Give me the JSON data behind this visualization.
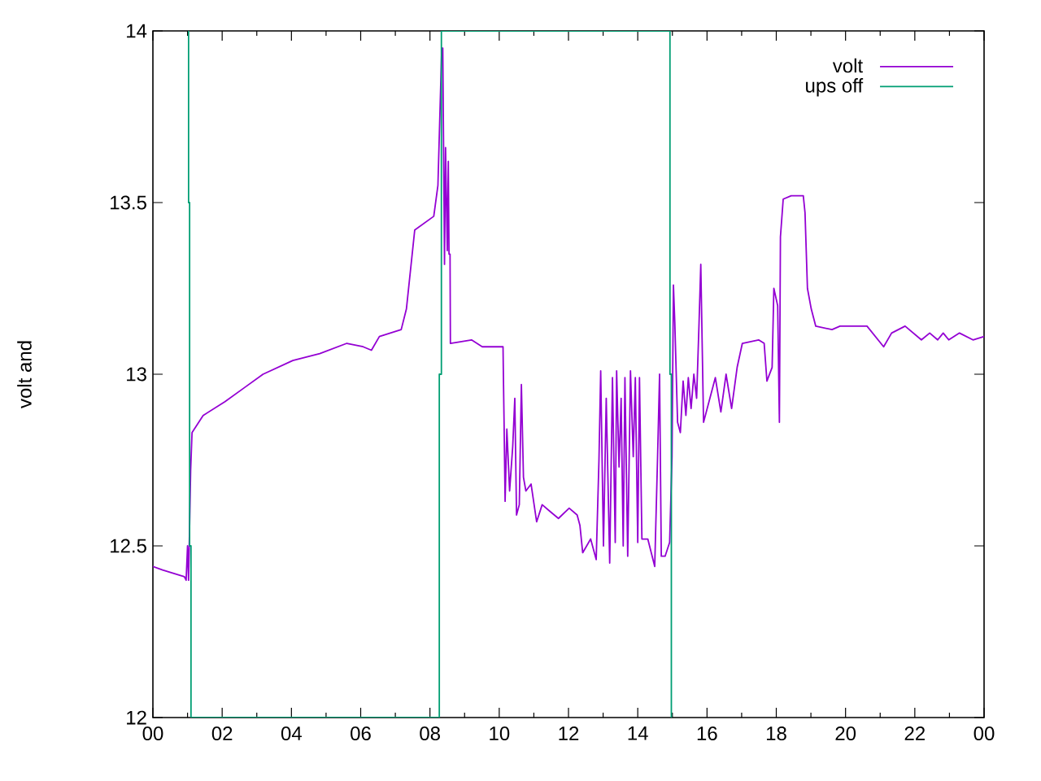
{
  "chart_data": {
    "type": "line",
    "ylabel": "volt and",
    "legend": "top right",
    "marker": "none",
    "line_style": "solid",
    "xlim": [
      0,
      24
    ],
    "ylim": [
      12,
      14
    ],
    "xticks": [
      {
        "value": 0,
        "label": "00"
      },
      {
        "value": 2,
        "label": "02"
      },
      {
        "value": 4,
        "label": "04"
      },
      {
        "value": 6,
        "label": "06"
      },
      {
        "value": 8,
        "label": "08"
      },
      {
        "value": 10,
        "label": "10"
      },
      {
        "value": 12,
        "label": "12"
      },
      {
        "value": 14,
        "label": "14"
      },
      {
        "value": 16,
        "label": "16"
      },
      {
        "value": 18,
        "label": "18"
      },
      {
        "value": 20,
        "label": "20"
      },
      {
        "value": 22,
        "label": "22"
      },
      {
        "value": 24,
        "label": "00"
      }
    ],
    "yticks": [
      12,
      12.5,
      13,
      13.5,
      14
    ],
    "series": [
      {
        "name": "volt",
        "color": "#9400d3",
        "x": [
          0,
          0.28,
          0.91,
          0.96,
          1.0,
          1.03,
          1.09,
          1.13,
          1.45,
          2.08,
          2.63,
          3.18,
          4.04,
          4.82,
          5.6,
          6.07,
          6.31,
          6.54,
          7.17,
          7.32,
          7.56,
          8.11,
          8.23,
          8.34,
          8.37,
          8.42,
          8.45,
          8.5,
          8.53,
          8.55,
          8.58,
          8.59,
          9.2,
          9.51,
          10.11,
          10.12,
          10.14,
          10.17,
          10.22,
          10.3,
          10.39,
          10.45,
          10.5,
          10.58,
          10.64,
          10.7,
          10.77,
          10.92,
          11.08,
          11.24,
          11.47,
          11.71,
          12.02,
          12.25,
          12.33,
          12.41,
          12.64,
          12.8,
          12.88,
          12.93,
          13.01,
          13.09,
          13.19,
          13.27,
          13.35,
          13.39,
          13.46,
          13.52,
          13.58,
          13.63,
          13.71,
          13.79,
          13.87,
          13.93,
          14.0,
          14.05,
          14.12,
          14.29,
          14.49,
          14.57,
          14.63,
          14.68,
          14.79,
          14.92,
          14.99,
          15.03,
          15.07,
          15.15,
          15.23,
          15.31,
          15.39,
          15.46,
          15.54,
          15.62,
          15.7,
          15.77,
          15.82,
          15.9,
          16.24,
          16.4,
          16.55,
          16.71,
          16.87,
          17.02,
          17.49,
          17.65,
          17.73,
          17.88,
          17.93,
          18.04,
          18.09,
          18.12,
          18.2,
          18.43,
          18.78,
          18.83,
          18.9,
          19.01,
          19.14,
          19.61,
          19.84,
          20.62,
          20.78,
          21.1,
          21.33,
          21.72,
          22.19,
          22.43,
          22.66,
          22.82,
          22.98,
          23.29,
          23.68,
          24
        ],
        "values": [
          12.44,
          12.43,
          12.41,
          12.4,
          12.5,
          12.4,
          12.72,
          12.83,
          12.88,
          12.92,
          12.96,
          13.0,
          13.04,
          13.06,
          13.09,
          13.08,
          13.07,
          13.11,
          13.13,
          13.19,
          13.42,
          13.46,
          13.55,
          13.95,
          13.95,
          13.32,
          13.66,
          13.36,
          13.62,
          13.35,
          13.35,
          13.09,
          13.1,
          13.08,
          13.08,
          13.0,
          12.86,
          12.63,
          12.84,
          12.66,
          12.79,
          12.93,
          12.59,
          12.62,
          12.97,
          12.7,
          12.66,
          12.68,
          12.57,
          12.62,
          12.6,
          12.58,
          12.61,
          12.59,
          12.56,
          12.48,
          12.52,
          12.46,
          12.75,
          13.01,
          12.5,
          12.93,
          12.45,
          12.99,
          12.51,
          13.01,
          12.73,
          12.93,
          12.5,
          12.99,
          12.47,
          13.01,
          12.76,
          12.99,
          12.51,
          12.99,
          12.52,
          12.52,
          12.44,
          12.75,
          13.0,
          12.47,
          12.47,
          12.51,
          12.76,
          13.26,
          13.15,
          12.86,
          12.83,
          12.98,
          12.88,
          12.99,
          12.9,
          13.0,
          12.93,
          13.15,
          13.32,
          12.86,
          12.99,
          12.89,
          13.0,
          12.9,
          13.02,
          13.09,
          13.1,
          13.09,
          12.98,
          13.02,
          13.25,
          13.2,
          12.86,
          13.4,
          13.51,
          13.52,
          13.52,
          13.47,
          13.25,
          13.19,
          13.14,
          13.13,
          13.14,
          13.14,
          13.12,
          13.08,
          13.12,
          13.14,
          13.1,
          13.12,
          13.1,
          13.12,
          13.1,
          13.12,
          13.1,
          13.11
        ]
      },
      {
        "name": "ups off",
        "color": "#009e73",
        "x": [
          1.03,
          1.03,
          1.06,
          1.06,
          1.1,
          1.1,
          8.27,
          8.27,
          8.33,
          8.33,
          14.93,
          14.93,
          14.97,
          14.97
        ],
        "values": [
          14,
          13.5,
          13.5,
          12.5,
          12.5,
          12,
          12,
          13,
          13,
          14,
          14,
          13,
          13,
          12
        ]
      }
    ]
  }
}
